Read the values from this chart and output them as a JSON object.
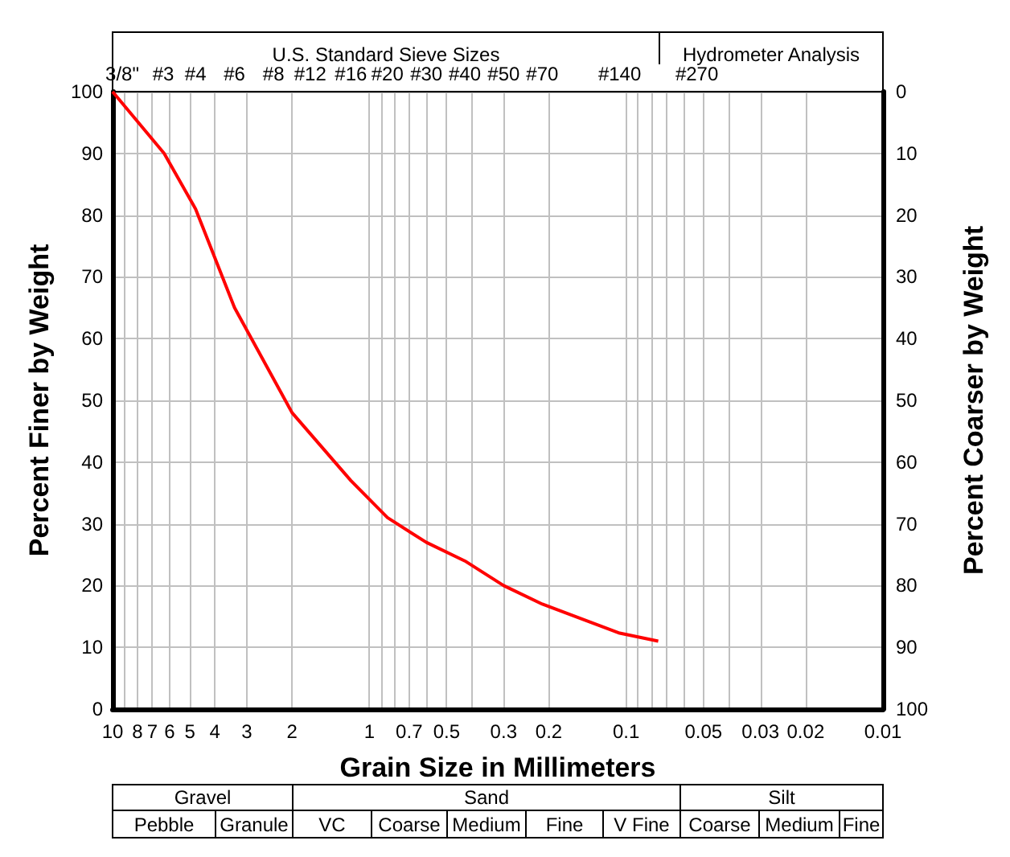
{
  "chart_data": {
    "type": "line",
    "xlabel": "Grain Size in Millimeters",
    "ylabel": "Percent Finer by Weight",
    "y2label": "Percent Coarser by Weight",
    "log": "x",
    "grid": true,
    "marker": "none",
    "line_style": "solid",
    "xlim": [
      10,
      0.01
    ],
    "xticks": [
      10,
      {
        "value": 9,
        "label": null
      },
      8,
      7,
      6,
      5,
      4,
      3,
      2,
      1,
      {
        "value": 0.9,
        "label": null
      },
      {
        "value": 0.8,
        "label": null
      },
      0.7,
      {
        "value": 0.6,
        "label": null
      },
      0.5,
      {
        "value": 0.4,
        "label": null
      },
      0.3,
      0.2,
      0.1,
      {
        "value": 0.09,
        "label": null
      },
      {
        "value": 0.08,
        "label": null
      },
      {
        "value": 0.07,
        "label": null
      },
      {
        "value": 0.06,
        "label": null
      },
      0.05,
      {
        "value": 0.04,
        "label": null
      },
      0.03,
      0.02,
      0.01
    ],
    "ylim": [
      0,
      100
    ],
    "yticks": [
      0,
      10,
      20,
      30,
      40,
      50,
      60,
      70,
      80,
      90,
      100
    ],
    "y2lim": [
      100,
      0
    ],
    "y2ticks": [
      0,
      10,
      20,
      30,
      40,
      50,
      60,
      70,
      80,
      90,
      100
    ],
    "series": [
      {
        "color": "#ff0000",
        "x": [
          10,
          6.3,
          4.75,
          3.35,
          2,
          1.18,
          0.85,
          0.6,
          0.425,
          0.3,
          0.212,
          0.106,
          0.075
        ],
        "values": [
          100,
          90,
          81,
          65,
          48,
          37,
          31,
          27,
          24,
          20,
          17,
          12.3,
          11
        ]
      }
    ],
    "annotations": [
      "U.S. Standard Sieve Sizes",
      "Hydrometer Analysis",
      "Gravel",
      "Sand",
      "Silt",
      "Pebble",
      "Granule",
      "VC",
      "Coarse",
      "Medium",
      "Fine",
      "V Fine",
      "Coarse",
      "Medium",
      "Fine",
      "3/8\"",
      "#3",
      "#4",
      "#6",
      "#8",
      "#12",
      "#16",
      "#20",
      "#30",
      "#40",
      "#50",
      "#70",
      "#140",
      "#270"
    ]
  }
}
